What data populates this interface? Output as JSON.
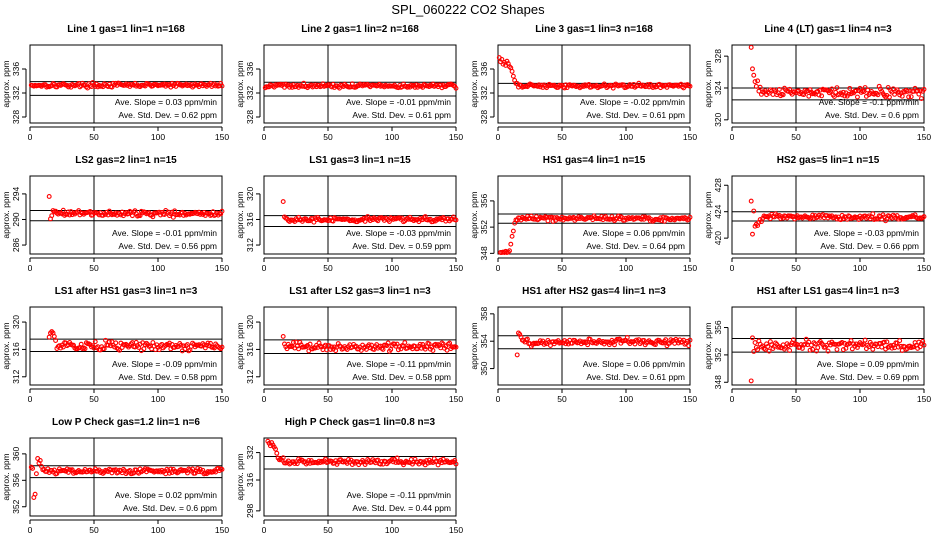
{
  "title": "SPL_060222  CO2 Shapes",
  "colors": {
    "points": "#ff0000",
    "axes": "#000000"
  },
  "chart_data": [
    {
      "type": "scatter",
      "title": "Line 1 gas=1 lin=1 n=168",
      "ylabel": "approx. ppm",
      "xlim": [
        0,
        150
      ],
      "ylim": [
        327,
        340
      ],
      "xticks": [
        0,
        50,
        100,
        150
      ],
      "yticks": [
        328,
        332,
        336
      ],
      "level": 333.3,
      "noise": 0.25,
      "vline_x": 50,
      "hlines": [
        333.9,
        331.6
      ],
      "slope_text": "Ave. Slope =  0.03  ppm/min",
      "sd_text": "Ave. Std. Dev. =  0.62  ppm",
      "shape": []
    },
    {
      "type": "scatter",
      "title": "Line 2 gas=1 lin=2 n=168",
      "ylabel": "approx. ppm",
      "xlim": [
        0,
        150
      ],
      "ylim": [
        327,
        340
      ],
      "xticks": [
        0,
        50,
        100,
        150
      ],
      "yticks": [
        328,
        332,
        336
      ],
      "level": 333.2,
      "noise": 0.25,
      "vline_x": 50,
      "hlines": [
        333.8,
        331.5
      ],
      "slope_text": "Ave. Slope =  -0.01  ppm/min",
      "sd_text": "Ave. Std. Dev. =  0.61  ppm",
      "shape": []
    },
    {
      "type": "scatter",
      "title": "Line 3 gas=1 lin=3 n=168",
      "ylabel": "approx. ppm",
      "xlim": [
        0,
        150
      ],
      "ylim": [
        327,
        340
      ],
      "xticks": [
        0,
        50,
        100,
        150
      ],
      "yticks": [
        328,
        332,
        336
      ],
      "level": 333.2,
      "noise": 0.25,
      "vline_x": 50,
      "hlines": [
        333.6,
        331.5
      ],
      "slope_text": "Ave. Slope =  -0.02  ppm/min",
      "sd_text": "Ave. Std. Dev. =  0.61  ppm",
      "shape": [
        [
          1,
          337.9
        ],
        [
          2,
          337.2
        ],
        [
          3,
          337.6
        ],
        [
          4,
          336.8
        ],
        [
          5,
          337.1
        ],
        [
          6,
          336.6
        ],
        [
          7,
          337.3
        ],
        [
          8,
          336.9
        ],
        [
          9,
          336.4
        ],
        [
          10,
          336.2
        ],
        [
          11,
          335.6
        ],
        [
          12,
          334.8
        ],
        [
          13,
          334.1
        ],
        [
          14,
          333.6
        ]
      ]
    },
    {
      "type": "scatter",
      "title": "Line 4 (LT) gas=1 lin=4 n=3",
      "ylabel": "approx. ppm",
      "xlim": [
        0,
        150
      ],
      "ylim": [
        319.6,
        329.4
      ],
      "xticks": [
        0,
        50,
        100,
        150
      ],
      "yticks": [
        320,
        324,
        328
      ],
      "level": 323.4,
      "noise": 0.5,
      "vline_x": 50,
      "hlines": [
        324.0,
        322.5
      ],
      "slope_text": "Ave. Slope =  -0.1  ppm/min",
      "sd_text": "Ave. Std. Dev. =  0.6  ppm",
      "shape": [
        [
          15,
          329.1
        ],
        [
          16,
          326.4
        ],
        [
          17,
          325.6
        ],
        [
          18,
          324.8
        ],
        [
          19,
          324.2
        ],
        [
          20,
          324.9
        ],
        [
          21,
          323.6
        ],
        [
          22,
          324.1
        ],
        [
          23,
          323.2
        ]
      ]
    },
    {
      "type": "scatter",
      "title": "LS2 gas=2 lin=1 n=15",
      "ylabel": "approx. ppm",
      "xlim": [
        0,
        150
      ],
      "ylim": [
        284.6,
        296.8
      ],
      "xticks": [
        0,
        50,
        100,
        150
      ],
      "yticks": [
        286,
        290,
        294
      ],
      "level": 290.9,
      "noise": 0.3,
      "vline_x": 50,
      "hlines": [
        291.4,
        289.8
      ],
      "slope_text": "Ave. Slope =  -0.01  ppm/min",
      "sd_text": "Ave. Std. Dev. =  0.56  ppm",
      "shape": [
        [
          15,
          293.6
        ],
        [
          16,
          290.1
        ],
        [
          17,
          290.6
        ],
        [
          18,
          291.4
        ],
        [
          19,
          291.2
        ],
        [
          20,
          291.3
        ]
      ]
    },
    {
      "type": "scatter",
      "title": "LS1 gas=3 lin=1 n=15",
      "ylabel": "approx. ppm",
      "xlim": [
        0,
        150
      ],
      "ylim": [
        310.6,
        322.8
      ],
      "xticks": [
        0,
        50,
        100,
        150
      ],
      "yticks": [
        312,
        316,
        320
      ],
      "level": 316.0,
      "noise": 0.3,
      "vline_x": 50,
      "hlines": [
        316.6,
        314.9
      ],
      "slope_text": "Ave. Slope =  -0.03  ppm/min",
      "sd_text": "Ave. Std. Dev. =  0.59  ppm",
      "shape": [
        [
          15,
          318.8
        ],
        [
          16,
          316.4
        ],
        [
          17,
          316.2
        ]
      ]
    },
    {
      "type": "scatter",
      "title": "HS1 gas=4 lin=1 n=15",
      "ylabel": "approx. ppm",
      "xlim": [
        0,
        150
      ],
      "ylim": [
        347.9,
        359.8
      ],
      "xticks": [
        0,
        50,
        100,
        150
      ],
      "yticks": [
        348,
        352,
        356
      ],
      "level": 353.3,
      "noise": 0.25,
      "vline_x": 50,
      "hlines": [
        354.0,
        352.6
      ],
      "slope_text": "Ave. Slope =  0.06  ppm/min",
      "sd_text": "Ave. Std. Dev. =  0.64  ppm",
      "shape": [
        [
          2,
          348.0
        ],
        [
          3,
          348.1
        ],
        [
          4,
          348.2
        ],
        [
          5,
          348.0
        ],
        [
          6,
          348.3
        ],
        [
          7,
          348.1
        ],
        [
          8,
          348.2
        ],
        [
          9,
          348.4
        ],
        [
          10,
          349.4
        ],
        [
          11,
          350.6
        ],
        [
          12,
          351.4
        ],
        [
          13,
          352.6
        ],
        [
          14,
          353.1
        ]
      ]
    },
    {
      "type": "scatter",
      "title": "HS2 gas=5 lin=1 n=15",
      "ylabel": "approx. ppm",
      "xlim": [
        0,
        150
      ],
      "ylim": [
        417.6,
        429.4
      ],
      "xticks": [
        0,
        50,
        100,
        150
      ],
      "yticks": [
        420,
        424,
        428
      ],
      "level": 423.2,
      "noise": 0.3,
      "vline_x": 50,
      "hlines": [
        424.0,
        422.6
      ],
      "slope_text": "Ave. Slope =  -0.03  ppm/min",
      "sd_text": "Ave. Std. Dev. =  0.66  ppm",
      "shape": [
        [
          15,
          425.6
        ],
        [
          16,
          420.6
        ],
        [
          17,
          424.1
        ],
        [
          18,
          421.8
        ],
        [
          19,
          422.1
        ],
        [
          20,
          421.9
        ],
        [
          21,
          422.4
        ],
        [
          22,
          422.8
        ],
        [
          23,
          422.5
        ],
        [
          24,
          423.0
        ]
      ]
    },
    {
      "type": "scatter",
      "title": "LS1 after HS1 gas=3 lin=1 n=3",
      "ylabel": "approx. ppm",
      "xlim": [
        0,
        150
      ],
      "ylim": [
        310.8,
        322.2
      ],
      "xticks": [
        0,
        50,
        100,
        150
      ],
      "yticks": [
        312,
        316,
        320
      ],
      "level": 316.5,
      "noise": 0.45,
      "vline_x": 50,
      "hlines": [
        317.5,
        315.7
      ],
      "slope_text": "Ave. Slope =  -0.09  ppm/min",
      "sd_text": "Ave. Std. Dev. =  0.58  ppm",
      "shape": [
        [
          15,
          317.8
        ],
        [
          16,
          318.4
        ],
        [
          17,
          318.6
        ],
        [
          18,
          318.4
        ],
        [
          19,
          317.9
        ],
        [
          20,
          317.3
        ]
      ]
    },
    {
      "type": "scatter",
      "title": "LS1 after LS2 gas=3 lin=1 n=3",
      "ylabel": "approx. ppm",
      "xlim": [
        0,
        150
      ],
      "ylim": [
        310.8,
        322.2
      ],
      "xticks": [
        0,
        50,
        100,
        150
      ],
      "yticks": [
        312,
        316,
        320
      ],
      "level": 316.4,
      "noise": 0.4,
      "vline_x": 50,
      "hlines": [
        317.4,
        315.4
      ],
      "slope_text": "Ave. Slope =  -0.11  ppm/min",
      "sd_text": "Ave. Std. Dev. =  0.58  ppm",
      "shape": [
        [
          15,
          317.9
        ],
        [
          16,
          316.8
        ],
        [
          17,
          316.4
        ]
      ]
    },
    {
      "type": "scatter",
      "title": "HS1 after HS2 gas=4 lin=1 n=3",
      "ylabel": "approx. ppm",
      "xlim": [
        0,
        150
      ],
      "ylim": [
        347.6,
        359.0
      ],
      "xticks": [
        0,
        50,
        100,
        150
      ],
      "yticks": [
        350,
        354,
        358
      ],
      "level": 353.9,
      "noise": 0.35,
      "vline_x": 50,
      "hlines": [
        354.8,
        352.9
      ],
      "slope_text": "Ave. Slope =  0.06  ppm/min",
      "sd_text": "Ave. Std. Dev. =  0.61  ppm",
      "shape": [
        [
          15,
          352.0
        ],
        [
          16,
          355.2
        ],
        [
          17,
          355.0
        ],
        [
          18,
          354.6
        ]
      ]
    },
    {
      "type": "scatter",
      "title": "HS1 after LS1 gas=4 lin=1 n=3",
      "ylabel": "approx. ppm",
      "xlim": [
        0,
        150
      ],
      "ylim": [
        347.6,
        359.0
      ],
      "xticks": [
        0,
        50,
        100,
        150
      ],
      "yticks": [
        348,
        352,
        356
      ],
      "level": 353.4,
      "noise": 0.5,
      "vline_x": 50,
      "hlines": [
        354.4,
        352.4
      ],
      "slope_text": "Ave. Slope =  0.09  ppm/min",
      "sd_text": "Ave. Std. Dev. =  0.69  ppm",
      "shape": [
        [
          15,
          348.2
        ],
        [
          16,
          354.5
        ],
        [
          17,
          352.5
        ],
        [
          18,
          353.8
        ]
      ]
    },
    {
      "type": "scatter",
      "title": "Low P Check gas=1.2 lin=1 n=6",
      "ylabel": "approx. ppm",
      "xlim": [
        0,
        150
      ],
      "ylim": [
        350.6,
        362.4
      ],
      "xticks": [
        0,
        50,
        100,
        150
      ],
      "yticks": [
        352,
        356,
        360
      ],
      "level": 357.4,
      "noise": 0.3,
      "vline_x": 50,
      "hlines": [
        358.2,
        356.4
      ],
      "slope_text": "Ave. Slope =  0.02  ppm/min",
      "sd_text": "Ave. Std. Dev. =  0.6  ppm",
      "shape": [
        [
          1,
          358.0
        ],
        [
          2,
          357.8
        ],
        [
          3,
          353.4
        ],
        [
          4,
          353.9
        ],
        [
          5,
          357.0
        ],
        [
          6,
          359.3
        ],
        [
          7,
          358.6
        ],
        [
          8,
          359.0
        ],
        [
          9,
          358.1
        ],
        [
          10,
          357.6
        ]
      ]
    },
    {
      "type": "scatter",
      "title": "High P Check gas=1 lin=0.8 n=3",
      "ylabel": "approx. ppm",
      "xlim": [
        0,
        150
      ],
      "ylim": [
        295.0,
        340.5
      ],
      "xticks": [
        0,
        50,
        100,
        150
      ],
      "yticks": [
        298,
        316,
        332
      ],
      "level": 326.5,
      "noise": 1.2,
      "vline_x": 50,
      "hlines": [
        329.7,
        322.4
      ],
      "slope_text": "Ave. Slope =  -0.11  ppm/min",
      "sd_text": "Ave. Std. Dev. =  0.44  ppm",
      "shape": [
        [
          3,
          338.6
        ],
        [
          4,
          337.4
        ],
        [
          5,
          336.0
        ],
        [
          6,
          337.8
        ],
        [
          7,
          336.4
        ],
        [
          8,
          335.2
        ],
        [
          9,
          334.0
        ],
        [
          10,
          331.6
        ],
        [
          11,
          328.8
        ],
        [
          12,
          327.8
        ],
        [
          13,
          328.2
        ],
        [
          14,
          327.6
        ],
        [
          15,
          329.0
        ]
      ]
    }
  ]
}
